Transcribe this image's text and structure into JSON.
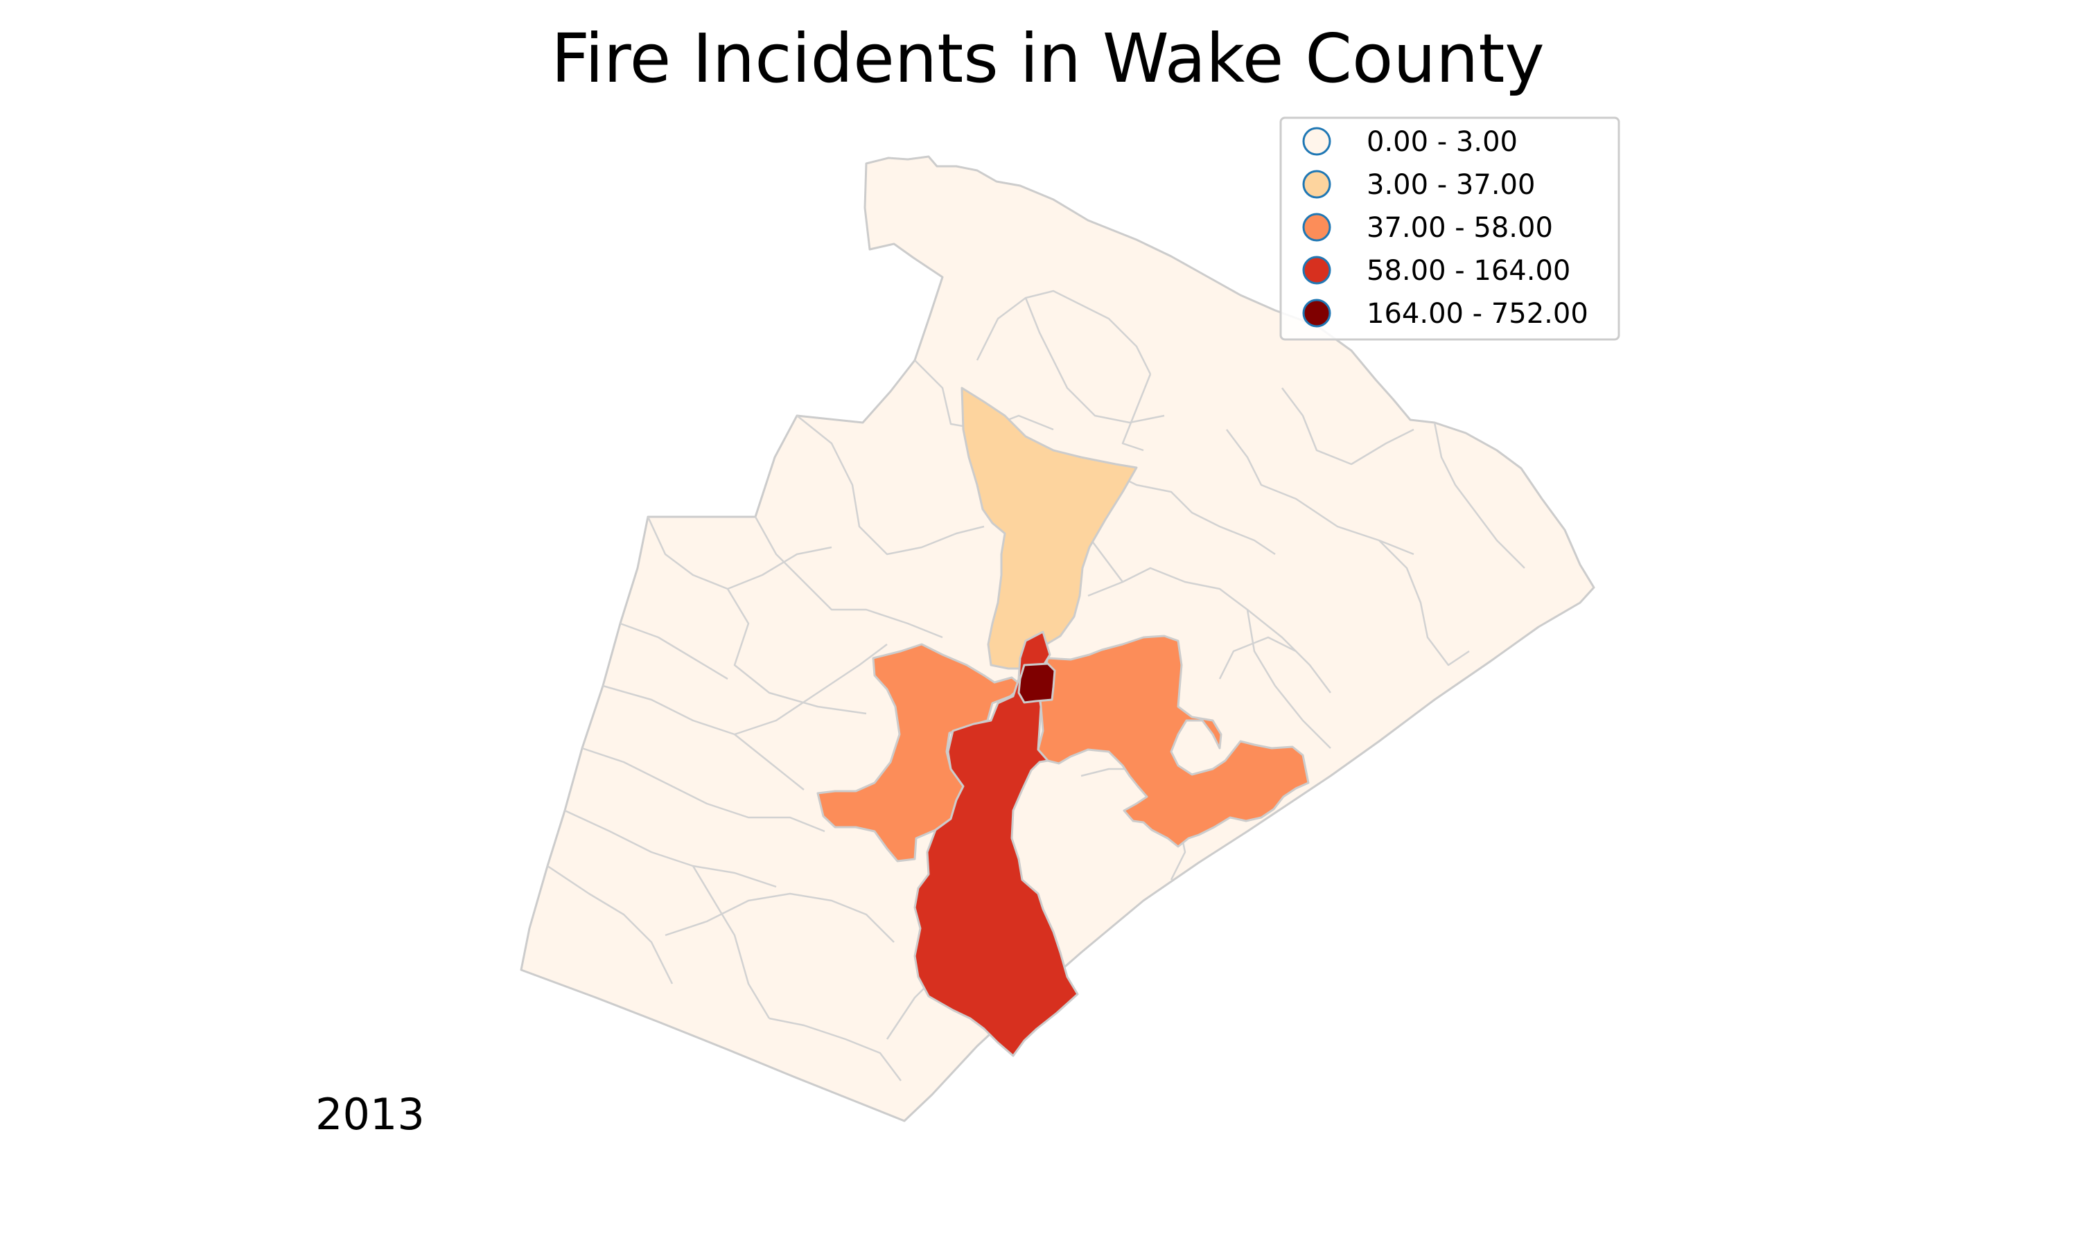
{
  "title": "Fire Incidents in Wake County",
  "year": "2013",
  "legend": {
    "placement": "top-right",
    "classes": [
      {
        "label": "0.00 - 3.00",
        "range": [
          0.0,
          3.0
        ],
        "color": "#fff5eb"
      },
      {
        "label": "3.00 - 37.00",
        "range": [
          3.0,
          37.0
        ],
        "color": "#fdd49e"
      },
      {
        "label": "37.00 - 58.00",
        "range": [
          37.0,
          58.0
        ],
        "color": "#fc8d59"
      },
      {
        "label": "58.00 - 164.00",
        "range": [
          58.0,
          164.0
        ],
        "color": "#d7301f"
      },
      {
        "label": "164.00 - 752.00",
        "range": [
          164.0,
          752.0
        ],
        "color": "#7f0000"
      }
    ],
    "marker_edge_color": "#1f77b4"
  },
  "colors": {
    "county_fill": "#fff5eb",
    "region_border": "#cccccc"
  },
  "regions": [
    {
      "id": "county-base",
      "class_index": 0
    },
    {
      "id": "north-corridor",
      "class_index": 1
    },
    {
      "id": "west-zone",
      "class_index": 2
    },
    {
      "id": "east-zone",
      "class_index": 2
    },
    {
      "id": "south-zone",
      "class_index": 3
    },
    {
      "id": "downtown",
      "class_index": 4
    }
  ]
}
